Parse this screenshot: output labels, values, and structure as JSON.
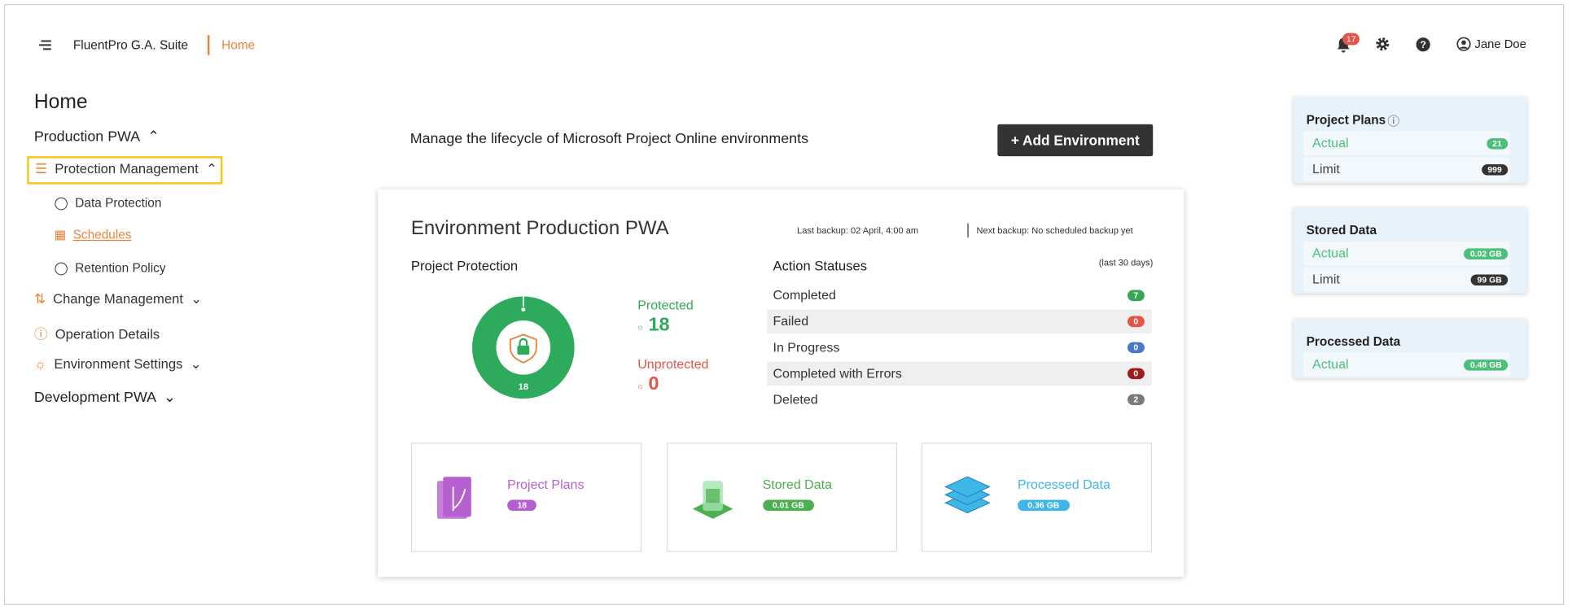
{
  "header": {
    "app_name": "FluentPro G.A. Suite",
    "breadcrumb": "Home",
    "notifications": 17,
    "user": "Jane Doe"
  },
  "sidebar": {
    "title": "Home",
    "items": [
      {
        "label": "Production PWA"
      },
      {
        "label": "Protection Management"
      },
      {
        "label": "Data Protection"
      },
      {
        "label": "Schedules"
      },
      {
        "label": "Retention Policy"
      },
      {
        "label": "Change Management"
      },
      {
        "label": "Operation Details"
      },
      {
        "label": "Environment Settings"
      },
      {
        "label": "Development PWA"
      }
    ]
  },
  "main": {
    "intro": "Manage the lifecycle of Microsoft Project Online environments",
    "add_button": "+ Add Environment",
    "environment": {
      "title": "Environment Production PWA",
      "last_backup": "Last backup: 02 April, 4:00 am",
      "next_backup": "Next backup: No scheduled backup yet",
      "protection": {
        "title": "Project Protection",
        "protected_label": "Protected",
        "protected": 18,
        "unprotected_label": "Unprotected",
        "unprotected": 0,
        "colors": [
          "#2eaa5c",
          "#e5534b"
        ]
      },
      "statuses": {
        "title": "Action Statuses",
        "period": "(last 30 days)",
        "rows": [
          {
            "label": "Completed",
            "count": 7,
            "color": "#3aa655"
          },
          {
            "label": "Failed",
            "count": 0,
            "color": "#e5534b"
          },
          {
            "label": "In Progress",
            "count": 0,
            "color": "#4a77c8"
          },
          {
            "label": "Completed with Errors",
            "count": 0,
            "color": "#a01c1c"
          },
          {
            "label": "Deleted",
            "count": 2,
            "color": "#7a7a7a"
          }
        ]
      },
      "tiles": [
        {
          "label": "Project Plans",
          "value": "18",
          "color": "#b65fd0"
        },
        {
          "label": "Stored Data",
          "value": "0.01 GB",
          "color": "#4caf50"
        },
        {
          "label": "Processed Data",
          "value": "0.36 GB",
          "color": "#3fb6e6"
        }
      ]
    }
  },
  "right_panel": [
    {
      "title": "Project Plans",
      "rows": [
        {
          "label": "Actual",
          "value": "21"
        },
        {
          "label": "Limit",
          "value": "999"
        }
      ]
    },
    {
      "title": "Stored Data",
      "rows": [
        {
          "label": "Actual",
          "value": "0.02 GB"
        },
        {
          "label": "Limit",
          "value": "99 GB"
        }
      ]
    },
    {
      "title": "Processed Data",
      "rows": [
        {
          "label": "Actual",
          "value": "0.48 GB"
        }
      ]
    }
  ]
}
